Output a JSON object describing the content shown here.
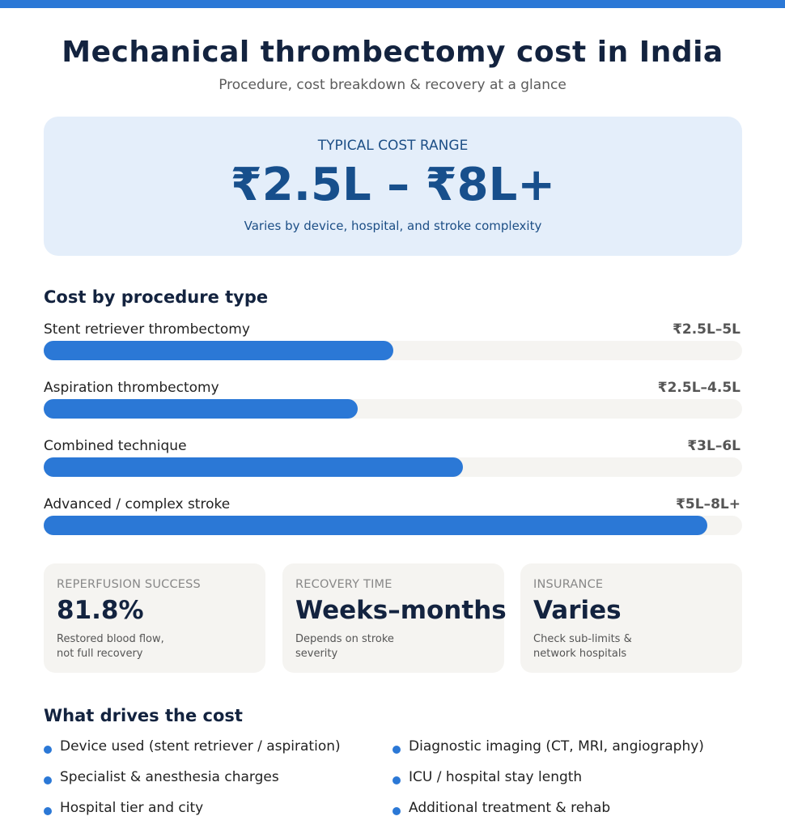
{
  "header": {
    "title": "Mechanical thrombectomy cost in India",
    "subtitle": "Procedure, cost breakdown & recovery at a glance"
  },
  "hero": {
    "label": "TYPICAL COST RANGE",
    "range": "₹2.5L – ₹8L+",
    "note": "Varies by device, hospital, and stroke complexity"
  },
  "procedures": {
    "title": "Cost by procedure type",
    "items": [
      {
        "name": "Stent retriever thrombectomy",
        "value": "₹2.5L–5L",
        "fill_percent": 50
      },
      {
        "name": "Aspiration thrombectomy",
        "value": "₹2.5L–4.5L",
        "fill_percent": 45
      },
      {
        "name": "Combined technique",
        "value": "₹3L–6L",
        "fill_percent": 60
      },
      {
        "name": "Advanced / complex stroke",
        "value": "₹5L–8L+",
        "fill_percent": 95
      }
    ]
  },
  "stats": [
    {
      "label": "REPERFUSION SUCCESS",
      "value": "81.8%",
      "note_line1": "Restored blood flow,",
      "note_line2": "not full recovery"
    },
    {
      "label": "RECOVERY TIME",
      "value": "Weeks–months",
      "note_line1": "Depends on stroke",
      "note_line2": "severity"
    },
    {
      "label": "INSURANCE",
      "value": "Varies",
      "note_line1": "Check sub-limits &",
      "note_line2": "network hospitals"
    }
  ],
  "drivers": {
    "title": "What drives the cost",
    "left": [
      "Device used (stent retriever / aspiration)",
      "Specialist & anesthesia charges",
      "Hospital tier and city"
    ],
    "right": [
      "Diagnostic imaging (CT, MRI, angiography)",
      "ICU / hospital stay length",
      "Additional treatment & rehab"
    ]
  },
  "colors": {
    "accent": "#2b78d6",
    "hero_bg": "#e4eefa",
    "card_bg": "#f5f4f1",
    "heading": "#13233f"
  }
}
